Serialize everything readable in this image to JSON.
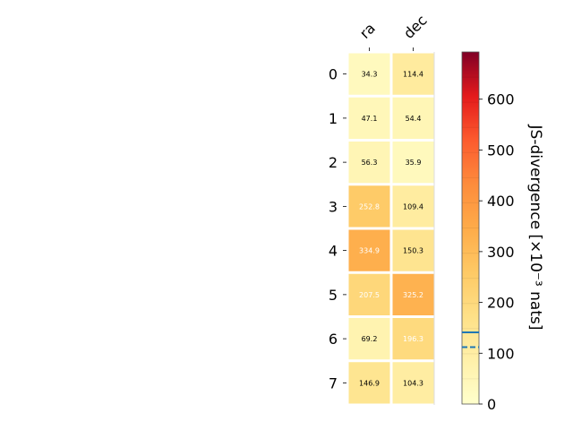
{
  "chart_data": {
    "type": "heatmap",
    "title": "",
    "x_labels": [
      "ra",
      "dec"
    ],
    "y_labels": [
      "0",
      "1",
      "2",
      "3",
      "4",
      "5",
      "6",
      "7"
    ],
    "values": [
      [
        34.3,
        114.4
      ],
      [
        47.1,
        54.4
      ],
      [
        56.3,
        35.9
      ],
      [
        252.8,
        109.4
      ],
      [
        334.9,
        150.3
      ],
      [
        207.5,
        325.2
      ],
      [
        69.2,
        196.3
      ],
      [
        146.9,
        104.3
      ]
    ],
    "colorbar": {
      "label": "JS-divergence [×10⁻³ nats]",
      "range": [
        0,
        693
      ],
      "ticks": [
        0,
        100,
        200,
        300,
        400,
        500,
        600
      ],
      "colormap": "YlOrRd",
      "markers": [
        {
          "value": 141,
          "style": "solid",
          "color": "#1f77b4"
        },
        {
          "value": 112,
          "style": "dashed",
          "color": "#1f77b4"
        }
      ]
    },
    "label_text_colors": {
      "light_cell": "#000000",
      "dark_cell": "#ffffff"
    }
  }
}
